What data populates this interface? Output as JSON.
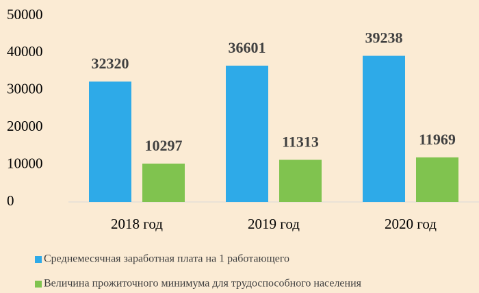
{
  "chart_data": {
    "type": "bar",
    "categories": [
      "2018 год",
      "2019 год",
      "2020 год"
    ],
    "series": [
      {
        "name": "Среднемесячная заработная плата на 1 работающего",
        "color": "#2eaae8",
        "values": [
          32320,
          36601,
          39238
        ]
      },
      {
        "name": "Величина прожиточного минимума для трудоспособного населения",
        "color": "#80c34f",
        "values": [
          10297,
          11313,
          11969
        ]
      }
    ],
    "ylim": [
      0,
      50000
    ],
    "yticks": [
      0,
      10000,
      20000,
      30000,
      40000,
      50000
    ],
    "grid": false
  }
}
